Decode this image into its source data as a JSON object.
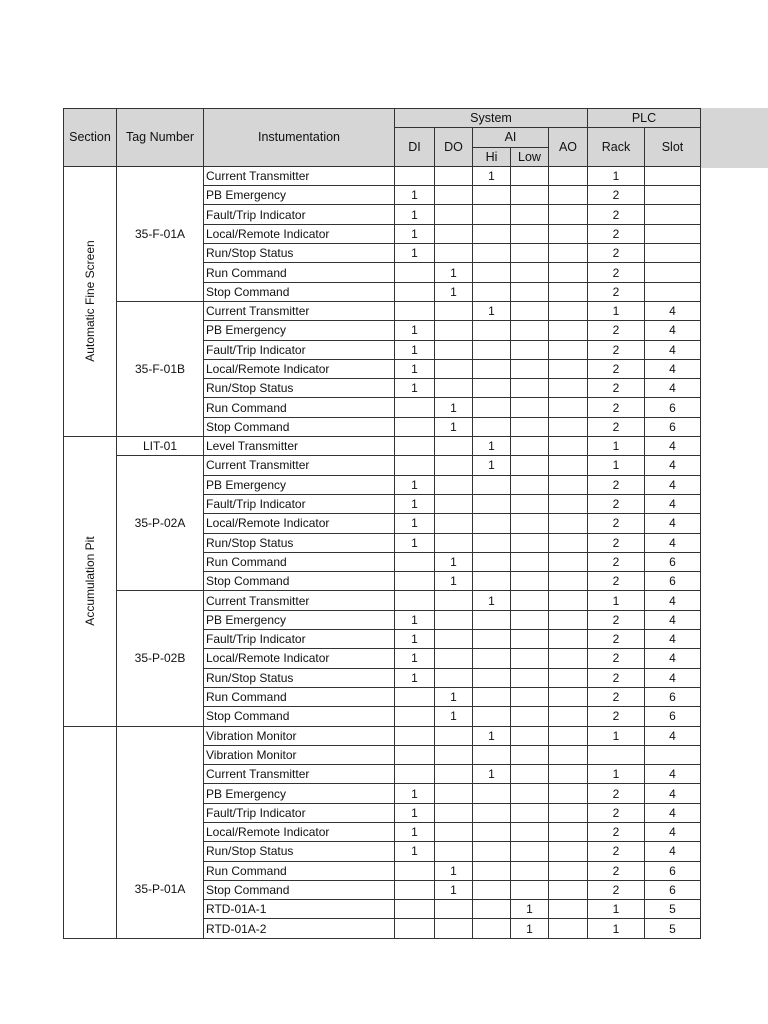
{
  "header": {
    "section": "Section",
    "tag_number": "Tag Number",
    "instrumentation": "Instumentation",
    "system": "System",
    "plc": "PLC",
    "di": "DI",
    "do": "DO",
    "ai": "AI",
    "hi": "Hi",
    "low": "Low",
    "ao": "AO",
    "rack": "Rack",
    "slot": "Slot"
  },
  "sections": [
    {
      "name": "Automatic Fine Screen",
      "tags": [
        {
          "tag": "35-F-01A",
          "rows": [
            [
              "Current Transmitter",
              "",
              "",
              "1",
              "",
              "",
              "1",
              ""
            ],
            [
              "PB Emergency",
              "1",
              "",
              "",
              "",
              "",
              "2",
              ""
            ],
            [
              "Fault/Trip Indicator",
              "1",
              "",
              "",
              "",
              "",
              "2",
              ""
            ],
            [
              "Local/Remote Indicator",
              "1",
              "",
              "",
              "",
              "",
              "2",
              ""
            ],
            [
              "Run/Stop Status",
              "1",
              "",
              "",
              "",
              "",
              "2",
              ""
            ],
            [
              "Run Command",
              "",
              "1",
              "",
              "",
              "",
              "2",
              ""
            ],
            [
              "Stop Command",
              "",
              "1",
              "",
              "",
              "",
              "2",
              ""
            ]
          ]
        },
        {
          "tag": "35-F-01B",
          "rows": [
            [
              "Current Transmitter",
              "",
              "",
              "1",
              "",
              "",
              "1",
              "4"
            ],
            [
              "PB Emergency",
              "1",
              "",
              "",
              "",
              "",
              "2",
              "4"
            ],
            [
              "Fault/Trip Indicator",
              "1",
              "",
              "",
              "",
              "",
              "2",
              "4"
            ],
            [
              "Local/Remote Indicator",
              "1",
              "",
              "",
              "",
              "",
              "2",
              "4"
            ],
            [
              "Run/Stop Status",
              "1",
              "",
              "",
              "",
              "",
              "2",
              "4"
            ],
            [
              "Run Command",
              "",
              "1",
              "",
              "",
              "",
              "2",
              "6"
            ],
            [
              "Stop Command",
              "",
              "1",
              "",
              "",
              "",
              "2",
              "6"
            ]
          ]
        }
      ]
    },
    {
      "name": "Accumulation Pit",
      "tags": [
        {
          "tag": "LIT-01",
          "rows": [
            [
              "Level Transmitter",
              "",
              "",
              "1",
              "",
              "",
              "1",
              "4"
            ]
          ]
        },
        {
          "tag": "35-P-02A",
          "rows": [
            [
              "Current Transmitter",
              "",
              "",
              "1",
              "",
              "",
              "1",
              "4"
            ],
            [
              "PB Emergency",
              "1",
              "",
              "",
              "",
              "",
              "2",
              "4"
            ],
            [
              "Fault/Trip Indicator",
              "1",
              "",
              "",
              "",
              "",
              "2",
              "4"
            ],
            [
              "Local/Remote Indicator",
              "1",
              "",
              "",
              "",
              "",
              "2",
              "4"
            ],
            [
              "Run/Stop Status",
              "1",
              "",
              "",
              "",
              "",
              "2",
              "4"
            ],
            [
              "Run Command",
              "",
              "1",
              "",
              "",
              "",
              "2",
              "6"
            ],
            [
              "Stop Command",
              "",
              "1",
              "",
              "",
              "",
              "2",
              "6"
            ]
          ]
        },
        {
          "tag": "35-P-02B",
          "rows": [
            [
              "Current Transmitter",
              "",
              "",
              "1",
              "",
              "",
              "1",
              "4"
            ],
            [
              "PB Emergency",
              "1",
              "",
              "",
              "",
              "",
              "2",
              "4"
            ],
            [
              "Fault/Trip Indicator",
              "1",
              "",
              "",
              "",
              "",
              "2",
              "4"
            ],
            [
              "Local/Remote Indicator",
              "1",
              "",
              "",
              "",
              "",
              "2",
              "4"
            ],
            [
              "Run/Stop Status",
              "1",
              "",
              "",
              "",
              "",
              "2",
              "4"
            ],
            [
              "Run Command",
              "",
              "1",
              "",
              "",
              "",
              "2",
              "6"
            ],
            [
              "Stop Command",
              "",
              "1",
              "",
              "",
              "",
              "2",
              "6"
            ]
          ]
        }
      ]
    },
    {
      "name": "",
      "tags": [
        {
          "tag": "35-P-01A",
          "bottom": true,
          "rows": [
            [
              "Vibration Monitor",
              "",
              "",
              "1",
              "",
              "",
              "1",
              "4"
            ],
            [
              "Vibration Monitor",
              "",
              "",
              "",
              "",
              "",
              "",
              ""
            ],
            [
              "Current Transmitter",
              "",
              "",
              "1",
              "",
              "",
              "1",
              "4"
            ],
            [
              "PB Emergency",
              "1",
              "",
              "",
              "",
              "",
              "2",
              "4"
            ],
            [
              "Fault/Trip Indicator",
              "1",
              "",
              "",
              "",
              "",
              "2",
              "4"
            ],
            [
              "Local/Remote Indicator",
              "1",
              "",
              "",
              "",
              "",
              "2",
              "4"
            ],
            [
              "Run/Stop Status",
              "1",
              "",
              "",
              "",
              "",
              "2",
              "4"
            ],
            [
              "Run Command",
              "",
              "1",
              "",
              "",
              "",
              "2",
              "6"
            ],
            [
              "Stop Command",
              "",
              "1",
              "",
              "",
              "",
              "2",
              "6"
            ],
            [
              "RTD-01A-1",
              "",
              "",
              "",
              "1",
              "",
              "1",
              "5"
            ],
            [
              "RTD-01A-2",
              "",
              "",
              "",
              "1",
              "",
              "1",
              "5"
            ]
          ]
        }
      ]
    }
  ]
}
